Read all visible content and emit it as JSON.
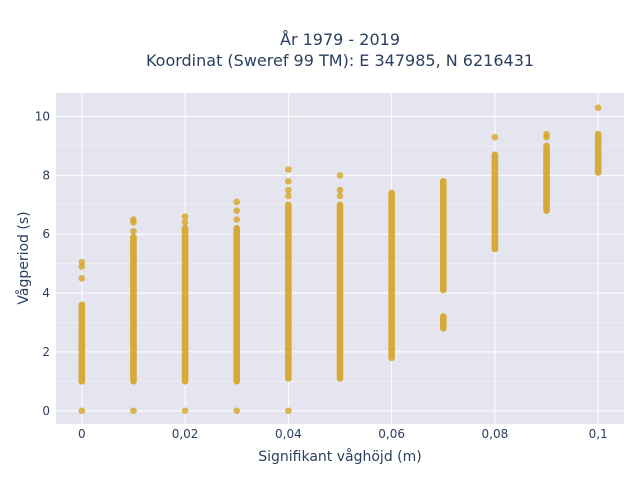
{
  "chart_data": {
    "type": "scatter",
    "title_lines": [
      "År 1979 - 2019",
      "Koordinat (Sweref 99 TM): E 347985, N 6216431"
    ],
    "xlabel": "Signifikant våghöjd (m)",
    "ylabel": "Vågperiod (s)",
    "xlim": [
      -0.005,
      0.105
    ],
    "ylim": [
      -0.45,
      10.8
    ],
    "x_ticks": [
      {
        "value": 0,
        "label": "0"
      },
      {
        "value": 0.02,
        "label": "0,02"
      },
      {
        "value": 0.04,
        "label": "0,04"
      },
      {
        "value": 0.06,
        "label": "0,06"
      },
      {
        "value": 0.08,
        "label": "0,08"
      },
      {
        "value": 0.1,
        "label": "0,1"
      }
    ],
    "y_ticks": [
      {
        "value": 0,
        "label": "0"
      },
      {
        "value": 2,
        "label": "2"
      },
      {
        "value": 4,
        "label": "4"
      },
      {
        "value": 6,
        "label": "6"
      },
      {
        "value": 8,
        "label": "8"
      },
      {
        "value": 10,
        "label": "10"
      }
    ],
    "grid": true,
    "marker_color": "#d4a017",
    "plot_background": "#e5e5f0",
    "columns": [
      {
        "x": 0,
        "segments": [
          [
            1.0,
            3.6
          ]
        ],
        "points": [
          0,
          4.5,
          4.9,
          5.05
        ]
      },
      {
        "x": 0.01,
        "segments": [
          [
            1.0,
            5.9
          ]
        ],
        "points": [
          0,
          6.1,
          6.4,
          6.5
        ]
      },
      {
        "x": 0.02,
        "segments": [
          [
            1.0,
            6.2
          ]
        ],
        "points": [
          0,
          6.4,
          6.6
        ]
      },
      {
        "x": 0.03,
        "segments": [
          [
            1.0,
            6.2
          ]
        ],
        "points": [
          0,
          6.5,
          6.8,
          7.1
        ]
      },
      {
        "x": 0.04,
        "segments": [
          [
            1.1,
            7.0
          ]
        ],
        "points": [
          0,
          7.3,
          7.5,
          7.8,
          8.2
        ]
      },
      {
        "x": 0.05,
        "segments": [
          [
            1.1,
            7.0
          ]
        ],
        "points": [
          7.3,
          7.5,
          8.0
        ]
      },
      {
        "x": 0.06,
        "segments": [
          [
            1.8,
            7.4
          ]
        ],
        "points": []
      },
      {
        "x": 0.07,
        "segments": [
          [
            2.8,
            3.2
          ],
          [
            4.1,
            7.8
          ]
        ],
        "points": []
      },
      {
        "x": 0.08,
        "segments": [
          [
            5.5,
            8.7
          ]
        ],
        "points": [
          9.3
        ]
      },
      {
        "x": 0.09,
        "segments": [
          [
            6.8,
            9.0
          ]
        ],
        "points": [
          9.3,
          9.4
        ]
      },
      {
        "x": 0.1,
        "segments": [
          [
            8.1,
            9.4
          ]
        ],
        "points": [
          10.3
        ]
      }
    ]
  }
}
